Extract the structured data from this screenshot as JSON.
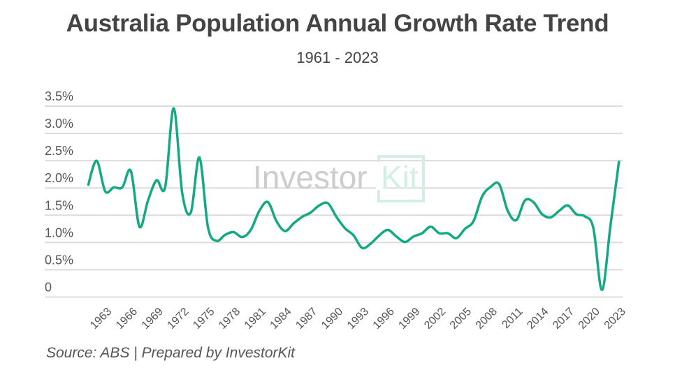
{
  "chart_data": {
    "type": "line",
    "title": "Australia Population Annual Growth Rate Trend",
    "subtitle": "1961 - 2023",
    "xlabel": "",
    "ylabel": "",
    "ylim": [
      0,
      3.5
    ],
    "y_ticks": [
      {
        "value": 0,
        "label": "0"
      },
      {
        "value": 0.5,
        "label": "0.5%"
      },
      {
        "value": 1.0,
        "label": "1.0%"
      },
      {
        "value": 1.5,
        "label": "1.5%"
      },
      {
        "value": 2.0,
        "label": "2.0%"
      },
      {
        "value": 2.5,
        "label": "2.5%"
      },
      {
        "value": 3.0,
        "label": "3.0%"
      },
      {
        "value": 3.5,
        "label": "3.5%"
      }
    ],
    "x_ticks": [
      "1963",
      "1966",
      "1969",
      "1972",
      "1975",
      "1978",
      "1981",
      "1984",
      "1987",
      "1990",
      "1993",
      "1996",
      "1999",
      "2002",
      "2005",
      "2008",
      "2011",
      "2014",
      "2017",
      "2020",
      "2023"
    ],
    "grid": true,
    "line_color": "#13a985",
    "x": [
      1961,
      1962,
      1963,
      1964,
      1965,
      1966,
      1967,
      1968,
      1969,
      1970,
      1971,
      1972,
      1973,
      1974,
      1975,
      1976,
      1977,
      1978,
      1979,
      1980,
      1981,
      1982,
      1983,
      1984,
      1985,
      1986,
      1987,
      1988,
      1989,
      1990,
      1991,
      1992,
      1993,
      1994,
      1995,
      1996,
      1997,
      1998,
      1999,
      2000,
      2001,
      2002,
      2003,
      2004,
      2005,
      2006,
      2007,
      2008,
      2009,
      2010,
      2011,
      2012,
      2013,
      2014,
      2015,
      2016,
      2017,
      2018,
      2019,
      2020,
      2021,
      2022,
      2023
    ],
    "values": [
      2.04,
      2.5,
      1.94,
      2.01,
      2.01,
      2.31,
      1.29,
      1.77,
      2.14,
      2.01,
      3.46,
      1.9,
      1.55,
      2.56,
      1.28,
      1.03,
      1.14,
      1.19,
      1.1,
      1.23,
      1.58,
      1.74,
      1.39,
      1.21,
      1.35,
      1.47,
      1.55,
      1.68,
      1.72,
      1.47,
      1.26,
      1.13,
      0.9,
      0.98,
      1.13,
      1.23,
      1.11,
      1.01,
      1.11,
      1.17,
      1.29,
      1.17,
      1.17,
      1.08,
      1.25,
      1.39,
      1.84,
      2.02,
      2.07,
      1.58,
      1.41,
      1.77,
      1.74,
      1.52,
      1.46,
      1.58,
      1.68,
      1.52,
      1.48,
      1.26,
      0.13,
      1.32,
      2.5
    ]
  },
  "watermark": {
    "text_left": "Investor",
    "text_right": "Kit",
    "color_left": "#cccccc",
    "color_right": "#d3eee2"
  },
  "source": "Source: ABS | Prepared by InvestorKit"
}
